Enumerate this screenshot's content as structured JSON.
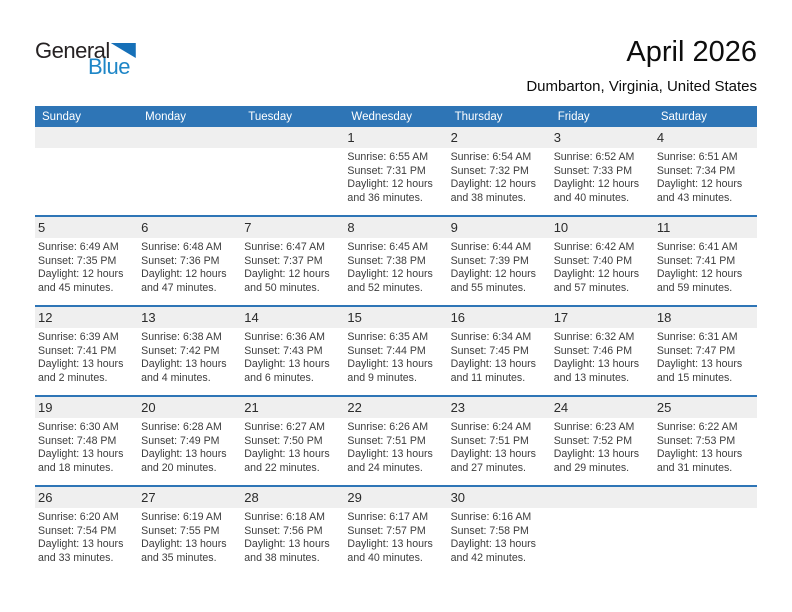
{
  "logo": {
    "text_general": "General",
    "text_blue": "Blue"
  },
  "header": {
    "title": "April 2026",
    "subtitle": "Dumbarton, Virginia, United States"
  },
  "colors": {
    "header_blue": "#2E75B6",
    "divider_blue": "#2E75B6",
    "number_strip_gray": "#EFEFEF",
    "logo_blue_text": "#1E86C7",
    "logo_triangle_blue": "#1670B8"
  },
  "calendar": {
    "weekday_names": [
      "Sunday",
      "Monday",
      "Tuesday",
      "Wednesday",
      "Thursday",
      "Friday",
      "Saturday"
    ],
    "weeks": [
      [
        null,
        null,
        null,
        {
          "day": "1",
          "lines": [
            "Sunrise: 6:55 AM",
            "Sunset: 7:31 PM",
            "Daylight: 12 hours",
            "and 36 minutes."
          ]
        },
        {
          "day": "2",
          "lines": [
            "Sunrise: 6:54 AM",
            "Sunset: 7:32 PM",
            "Daylight: 12 hours",
            "and 38 minutes."
          ]
        },
        {
          "day": "3",
          "lines": [
            "Sunrise: 6:52 AM",
            "Sunset: 7:33 PM",
            "Daylight: 12 hours",
            "and 40 minutes."
          ]
        },
        {
          "day": "4",
          "lines": [
            "Sunrise: 6:51 AM",
            "Sunset: 7:34 PM",
            "Daylight: 12 hours",
            "and 43 minutes."
          ]
        }
      ],
      [
        {
          "day": "5",
          "lines": [
            "Sunrise: 6:49 AM",
            "Sunset: 7:35 PM",
            "Daylight: 12 hours",
            "and 45 minutes."
          ]
        },
        {
          "day": "6",
          "lines": [
            "Sunrise: 6:48 AM",
            "Sunset: 7:36 PM",
            "Daylight: 12 hours",
            "and 47 minutes."
          ]
        },
        {
          "day": "7",
          "lines": [
            "Sunrise: 6:47 AM",
            "Sunset: 7:37 PM",
            "Daylight: 12 hours",
            "and 50 minutes."
          ]
        },
        {
          "day": "8",
          "lines": [
            "Sunrise: 6:45 AM",
            "Sunset: 7:38 PM",
            "Daylight: 12 hours",
            "and 52 minutes."
          ]
        },
        {
          "day": "9",
          "lines": [
            "Sunrise: 6:44 AM",
            "Sunset: 7:39 PM",
            "Daylight: 12 hours",
            "and 55 minutes."
          ]
        },
        {
          "day": "10",
          "lines": [
            "Sunrise: 6:42 AM",
            "Sunset: 7:40 PM",
            "Daylight: 12 hours",
            "and 57 minutes."
          ]
        },
        {
          "day": "11",
          "lines": [
            "Sunrise: 6:41 AM",
            "Sunset: 7:41 PM",
            "Daylight: 12 hours",
            "and 59 minutes."
          ]
        }
      ],
      [
        {
          "day": "12",
          "lines": [
            "Sunrise: 6:39 AM",
            "Sunset: 7:41 PM",
            "Daylight: 13 hours",
            "and 2 minutes."
          ]
        },
        {
          "day": "13",
          "lines": [
            "Sunrise: 6:38 AM",
            "Sunset: 7:42 PM",
            "Daylight: 13 hours",
            "and 4 minutes."
          ]
        },
        {
          "day": "14",
          "lines": [
            "Sunrise: 6:36 AM",
            "Sunset: 7:43 PM",
            "Daylight: 13 hours",
            "and 6 minutes."
          ]
        },
        {
          "day": "15",
          "lines": [
            "Sunrise: 6:35 AM",
            "Sunset: 7:44 PM",
            "Daylight: 13 hours",
            "and 9 minutes."
          ]
        },
        {
          "day": "16",
          "lines": [
            "Sunrise: 6:34 AM",
            "Sunset: 7:45 PM",
            "Daylight: 13 hours",
            "and 11 minutes."
          ]
        },
        {
          "day": "17",
          "lines": [
            "Sunrise: 6:32 AM",
            "Sunset: 7:46 PM",
            "Daylight: 13 hours",
            "and 13 minutes."
          ]
        },
        {
          "day": "18",
          "lines": [
            "Sunrise: 6:31 AM",
            "Sunset: 7:47 PM",
            "Daylight: 13 hours",
            "and 15 minutes."
          ]
        }
      ],
      [
        {
          "day": "19",
          "lines": [
            "Sunrise: 6:30 AM",
            "Sunset: 7:48 PM",
            "Daylight: 13 hours",
            "and 18 minutes."
          ]
        },
        {
          "day": "20",
          "lines": [
            "Sunrise: 6:28 AM",
            "Sunset: 7:49 PM",
            "Daylight: 13 hours",
            "and 20 minutes."
          ]
        },
        {
          "day": "21",
          "lines": [
            "Sunrise: 6:27 AM",
            "Sunset: 7:50 PM",
            "Daylight: 13 hours",
            "and 22 minutes."
          ]
        },
        {
          "day": "22",
          "lines": [
            "Sunrise: 6:26 AM",
            "Sunset: 7:51 PM",
            "Daylight: 13 hours",
            "and 24 minutes."
          ]
        },
        {
          "day": "23",
          "lines": [
            "Sunrise: 6:24 AM",
            "Sunset: 7:51 PM",
            "Daylight: 13 hours",
            "and 27 minutes."
          ]
        },
        {
          "day": "24",
          "lines": [
            "Sunrise: 6:23 AM",
            "Sunset: 7:52 PM",
            "Daylight: 13 hours",
            "and 29 minutes."
          ]
        },
        {
          "day": "25",
          "lines": [
            "Sunrise: 6:22 AM",
            "Sunset: 7:53 PM",
            "Daylight: 13 hours",
            "and 31 minutes."
          ]
        }
      ],
      [
        {
          "day": "26",
          "lines": [
            "Sunrise: 6:20 AM",
            "Sunset: 7:54 PM",
            "Daylight: 13 hours",
            "and 33 minutes."
          ]
        },
        {
          "day": "27",
          "lines": [
            "Sunrise: 6:19 AM",
            "Sunset: 7:55 PM",
            "Daylight: 13 hours",
            "and 35 minutes."
          ]
        },
        {
          "day": "28",
          "lines": [
            "Sunrise: 6:18 AM",
            "Sunset: 7:56 PM",
            "Daylight: 13 hours",
            "and 38 minutes."
          ]
        },
        {
          "day": "29",
          "lines": [
            "Sunrise: 6:17 AM",
            "Sunset: 7:57 PM",
            "Daylight: 13 hours",
            "and 40 minutes."
          ]
        },
        {
          "day": "30",
          "lines": [
            "Sunrise: 6:16 AM",
            "Sunset: 7:58 PM",
            "Daylight: 13 hours",
            "and 42 minutes."
          ]
        },
        null,
        null
      ]
    ]
  }
}
